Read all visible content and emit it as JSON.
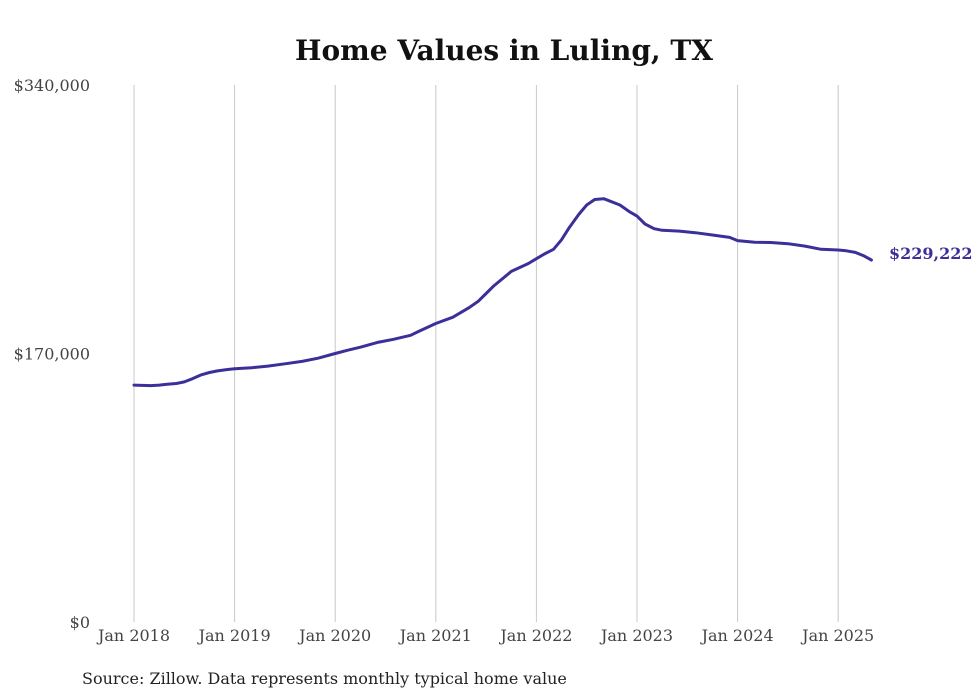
{
  "chart_data": {
    "type": "line",
    "title": "Home Values in Luling, TX",
    "xlabel": "",
    "ylabel": "",
    "y_ticks": [
      "$0",
      "$170,000",
      "$340,000"
    ],
    "ylim": [
      0,
      340000
    ],
    "x_ticks": [
      "Jan 2018",
      "Jan 2019",
      "Jan 2020",
      "Jan 2021",
      "Jan 2022",
      "Jan 2023",
      "Jan 2024",
      "Jan 2025"
    ],
    "grid": "vertical",
    "line_color": "#3b2f9a",
    "end_label": "$229,222",
    "x": [
      2018.0,
      2018.08,
      2018.17,
      2018.25,
      2018.33,
      2018.42,
      2018.5,
      2018.58,
      2018.67,
      2018.75,
      2018.83,
      2018.92,
      2019.0,
      2019.17,
      2019.33,
      2019.5,
      2019.67,
      2019.83,
      2020.0,
      2020.12,
      2020.25,
      2020.42,
      2020.5,
      2020.58,
      2020.75,
      2020.83,
      2021.0,
      2021.17,
      2021.33,
      2021.42,
      2021.5,
      2021.58,
      2021.75,
      2021.92,
      2022.0,
      2022.08,
      2022.17,
      2022.25,
      2022.33,
      2022.42,
      2022.5,
      2022.58,
      2022.67,
      2022.83,
      2022.92,
      2023.0,
      2023.08,
      2023.17,
      2023.25,
      2023.42,
      2023.58,
      2023.75,
      2023.92,
      2024.0,
      2024.17,
      2024.33,
      2024.5,
      2024.67,
      2024.83,
      2025.0,
      2025.08,
      2025.17,
      2025.25,
      2025.33
    ],
    "values": [
      150000,
      149800,
      149700,
      150000,
      150500,
      151000,
      152000,
      154000,
      156500,
      158000,
      159000,
      159800,
      160300,
      161000,
      162000,
      163500,
      165000,
      167000,
      170000,
      172000,
      174000,
      177000,
      178000,
      179000,
      181500,
      184000,
      189000,
      193000,
      199000,
      203000,
      208000,
      213000,
      222000,
      227000,
      230000,
      233000,
      236000,
      242000,
      250000,
      258000,
      264000,
      267500,
      268000,
      264000,
      260000,
      257000,
      252000,
      249000,
      248000,
      247500,
      246500,
      245000,
      243500,
      241500,
      240500,
      240300,
      239500,
      238000,
      236000,
      235500,
      235000,
      234000,
      232000,
      229222
    ]
  },
  "source_note": "Source: Zillow. Data represents monthly typical home value"
}
